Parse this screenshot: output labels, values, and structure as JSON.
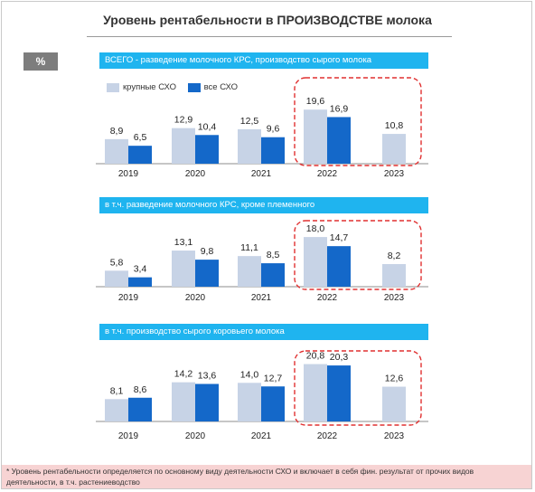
{
  "title": "Уровень рентабельности в ПРОИЗВОДСТВЕ молока",
  "unit_badge": "%",
  "legend": {
    "large": "крупные СХО",
    "all": "все СХО"
  },
  "colors": {
    "large": "#c7d3e6",
    "all": "#1468c9",
    "header": "#1fb4ef",
    "highlight": "#e03030",
    "footnote_bg": "#f7d3d3"
  },
  "chart_data": [
    {
      "type": "bar",
      "title": "ВСЕГО - разведение молочного КРС, производство сырого молока",
      "categories": [
        "2019",
        "2020",
        "2021",
        "2022",
        "2023"
      ],
      "series": [
        {
          "name": "крупные СХО",
          "values": [
            8.9,
            12.9,
            12.5,
            19.6,
            10.8
          ]
        },
        {
          "name": "все СХО",
          "values": [
            6.5,
            10.4,
            9.6,
            16.9,
            null
          ]
        }
      ],
      "value_labels": {
        "large": [
          "8,9",
          "12,9",
          "12,5",
          "19,6",
          "10,8"
        ],
        "all": [
          "6,5",
          "10,4",
          "9,6",
          "16,9",
          ""
        ]
      }
    },
    {
      "type": "bar",
      "title": "в т.ч. разведение молочного КРС, кроме племенного",
      "categories": [
        "2019",
        "2020",
        "2021",
        "2022",
        "2023"
      ],
      "series": [
        {
          "name": "крупные СХО",
          "values": [
            5.8,
            13.1,
            11.1,
            18.0,
            8.2
          ]
        },
        {
          "name": "все СХО",
          "values": [
            3.4,
            9.8,
            8.5,
            14.7,
            null
          ]
        }
      ],
      "value_labels": {
        "large": [
          "5,8",
          "13,1",
          "11,1",
          "18,0",
          "8,2"
        ],
        "all": [
          "3,4",
          "9,8",
          "8,5",
          "14,7",
          ""
        ]
      }
    },
    {
      "type": "bar",
      "title": "в т.ч. производство сырого коровьего молока",
      "categories": [
        "2019",
        "2020",
        "2021",
        "2022",
        "2023"
      ],
      "series": [
        {
          "name": "крупные СХО",
          "values": [
            8.1,
            14.2,
            14.0,
            20.8,
            12.6
          ]
        },
        {
          "name": "все СХО",
          "values": [
            8.6,
            13.6,
            12.7,
            20.3,
            null
          ]
        }
      ],
      "value_labels": {
        "large": [
          "8,1",
          "14,2",
          "14,0",
          "20,8",
          "12,6"
        ],
        "all": [
          "8,6",
          "13,6",
          "12,7",
          "20,3",
          ""
        ]
      }
    }
  ],
  "footnote": "* Уровень рентабельности определяется по основному виду деятельности СХО и включает в себя фин. результат от прочих видов деятельности, в т.ч. растениеводство"
}
